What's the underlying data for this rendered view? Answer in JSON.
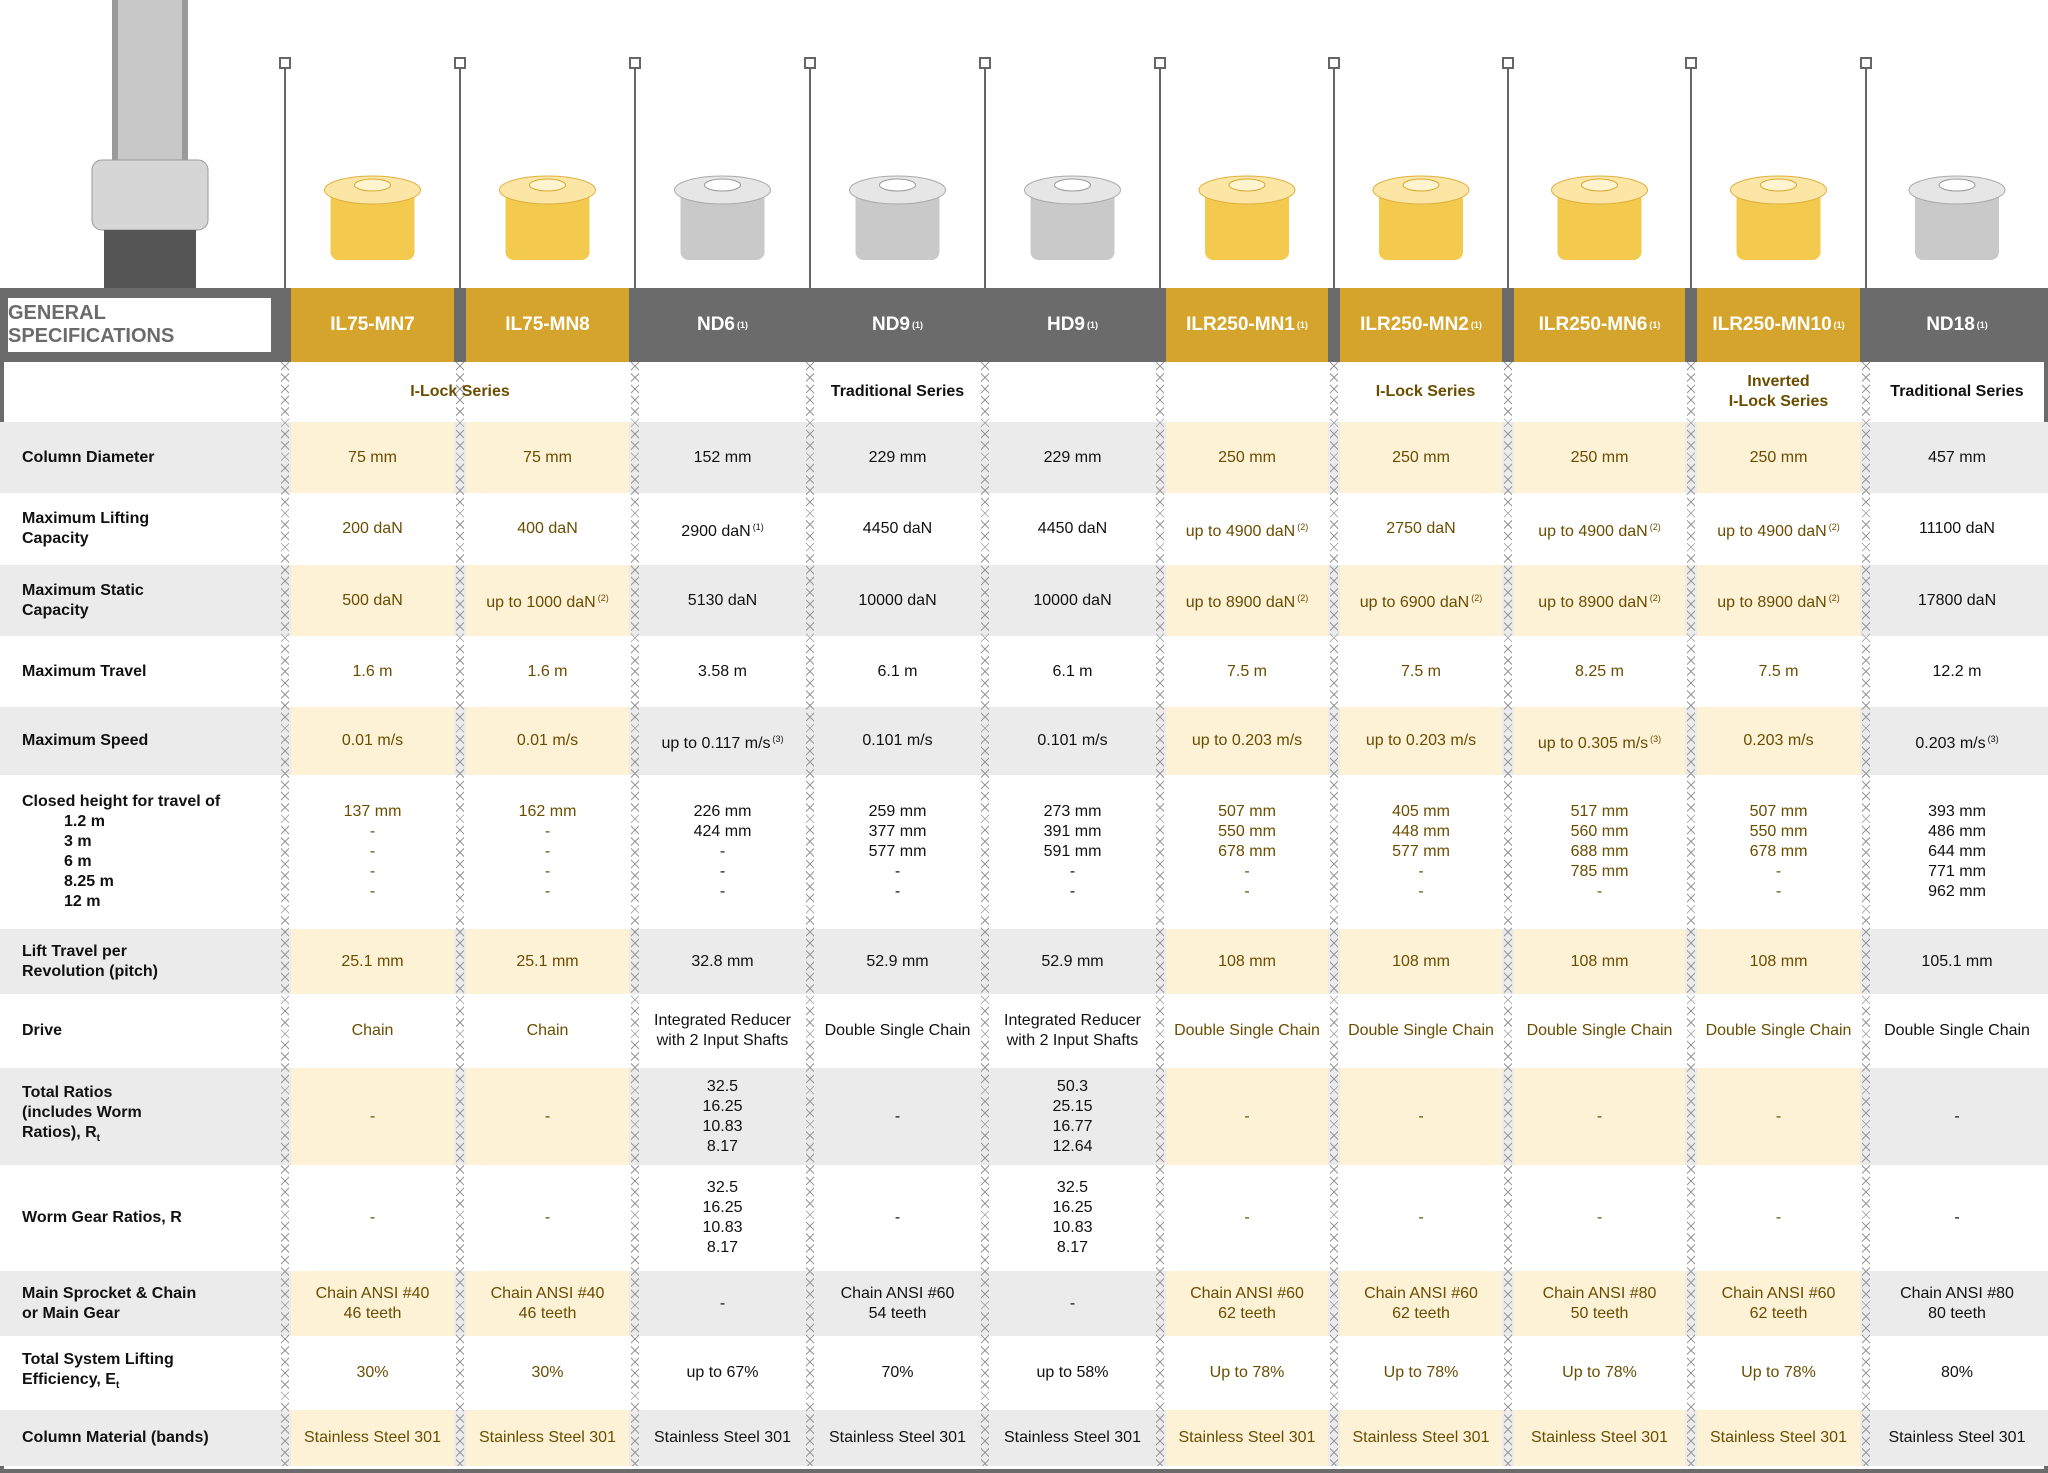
{
  "header": {
    "title": "GENERAL SPECIFICATIONS"
  },
  "columns": [
    {
      "name": "IL75-MN7",
      "color": "#d4a42c"
    },
    {
      "name": "IL75-MN8",
      "color": "#d4a42c"
    },
    {
      "name": "ND6",
      "note": "(1)",
      "color": "#6b6b6b"
    },
    {
      "name": "ND9",
      "note": "(1)",
      "color": "#6b6b6b"
    },
    {
      "name": "HD9",
      "note": "(1)",
      "color": "#6b6b6b"
    },
    {
      "name": "ILR250-MN1",
      "note": "(1)",
      "color": "#d4a42c"
    },
    {
      "name": "ILR250-MN2",
      "note": "(1)",
      "color": "#d4a42c"
    },
    {
      "name": "ILR250-MN6",
      "note": "(1)",
      "color": "#d4a42c"
    },
    {
      "name": "ILR250-MN10",
      "note": "(1)",
      "color": "#d4a42c"
    },
    {
      "name": "ND18",
      "note": "(1)",
      "color": "#6b6b6b"
    }
  ],
  "series": [
    [
      "I-Lock Series"
    ],
    [
      "Traditional Series"
    ],
    [
      "I-Lock Series"
    ],
    [
      "Inverted",
      "I-Lock Series"
    ],
    [
      "Traditional Series"
    ]
  ],
  "rows": [
    {
      "label": [
        "Column Diameter"
      ],
      "cells": [
        "75 mm",
        "75 mm",
        "152 mm",
        "229 mm",
        "229 mm",
        "250 mm",
        "250 mm",
        "250 mm",
        "250 mm",
        "457 mm"
      ]
    },
    {
      "label": [
        "Maximum Lifting",
        "Capacity"
      ],
      "cells": [
        "200 daN",
        "400 daN",
        [
          {
            "text": "2900 daN",
            "note": "(1)"
          }
        ],
        "4450 daN",
        "4450 daN",
        [
          {
            "text": "up to 4900 daN",
            "note": "(2)"
          }
        ],
        "2750 daN",
        [
          {
            "text": "up to 4900 daN",
            "note": "(2)"
          }
        ],
        [
          {
            "text": "up to 4900 daN",
            "note": "(2)"
          }
        ],
        "11100 daN"
      ]
    },
    {
      "label": [
        "Maximum Static",
        "Capacity"
      ],
      "cells": [
        "500 daN",
        [
          {
            "text": "up to 1000 daN",
            "note": "(2)"
          }
        ],
        "5130 daN",
        "10000 daN",
        "10000 daN",
        [
          {
            "text": "up to 8900 daN",
            "note": "(2)"
          }
        ],
        [
          {
            "text": "up to 6900 daN",
            "note": "(2)"
          }
        ],
        [
          {
            "text": "up to 8900 daN",
            "note": "(2)"
          }
        ],
        [
          {
            "text": "up to 8900 daN",
            "note": "(2)"
          }
        ],
        "17800 daN"
      ]
    },
    {
      "label": [
        "Maximum Travel"
      ],
      "cells": [
        "1.6 m",
        "1.6 m",
        "3.58 m",
        "6.1 m",
        "6.1 m",
        "7.5 m",
        "7.5 m",
        "8.25 m",
        "7.5 m",
        "12.2 m"
      ]
    },
    {
      "label": [
        "Maximum Speed"
      ],
      "cells": [
        "0.01 m/s",
        "0.01 m/s",
        [
          {
            "text": "up to 0.117 m/s",
            "note": "(3)"
          }
        ],
        "0.101 m/s",
        "0.101 m/s",
        "up to 0.203 m/s",
        "up to 0.203 m/s",
        [
          {
            "text": "up to 0.305 m/s",
            "note": "(3)"
          }
        ],
        "0.203 m/s",
        [
          {
            "text": "0.203 m/s",
            "note": "(3)"
          }
        ]
      ]
    },
    {
      "label": [
        "Closed height for travel of"
      ],
      "sublabels": [
        "1.2 m",
        "3 m",
        "6 m",
        "8.25 m",
        "12 m"
      ],
      "cells": [
        [
          "137 mm",
          "-",
          "-",
          "-",
          "-"
        ],
        [
          "162 mm",
          "-",
          "-",
          "-",
          "-"
        ],
        [
          "226 mm",
          "424 mm",
          "-",
          "-",
          "-"
        ],
        [
          "259 mm",
          "377 mm",
          "577 mm",
          "-",
          "-"
        ],
        [
          "273 mm",
          "391 mm",
          "591 mm",
          "-",
          "-"
        ],
        [
          "507 mm",
          "550 mm",
          "678 mm",
          "-",
          "-"
        ],
        [
          "405 mm",
          "448 mm",
          "577 mm",
          "-",
          "-"
        ],
        [
          "517 mm",
          "560 mm",
          "688 mm",
          "785 mm",
          "-"
        ],
        [
          "507 mm",
          "550 mm",
          "678 mm",
          "-",
          "-"
        ],
        [
          "393 mm",
          "486 mm",
          "644 mm",
          "771 mm",
          "962 mm"
        ]
      ]
    },
    {
      "label": [
        "Lift Travel per",
        "Revolution (pitch)"
      ],
      "cells": [
        "25.1 mm",
        "25.1 mm",
        "32.8 mm",
        "52.9 mm",
        "52.9 mm",
        "108 mm",
        "108 mm",
        "108 mm",
        "108 mm",
        "105.1 mm"
      ]
    },
    {
      "label": [
        "Drive"
      ],
      "cells": [
        "Chain",
        "Chain",
        [
          "Integrated Reducer",
          "with 2 Input Shafts"
        ],
        "Double Single Chain",
        [
          "Integrated Reducer",
          "with 2 Input Shafts"
        ],
        "Double Single Chain",
        "Double Single Chain",
        "Double Single Chain",
        "Double Single Chain",
        "Double Single Chain"
      ]
    },
    {
      "label": [
        "Total Ratios",
        "(includes Worm",
        {
          "text": "Ratios), R",
          "sub": "t"
        }
      ],
      "cells": [
        "-",
        "-",
        [
          "32.5",
          "16.25",
          "10.83",
          "8.17"
        ],
        "-",
        [
          "50.3",
          "25.15",
          "16.77",
          "12.64"
        ],
        "-",
        "-",
        "-",
        "-",
        "-"
      ]
    },
    {
      "label": [
        "Worm Gear Ratios, R"
      ],
      "cells": [
        "-",
        "-",
        [
          "32.5",
          "16.25",
          "10.83",
          "8.17"
        ],
        "-",
        [
          "32.5",
          "16.25",
          "10.83",
          "8.17"
        ],
        "-",
        "-",
        "-",
        "-",
        "-"
      ]
    },
    {
      "label": [
        "Main Sprocket & Chain",
        "or Main Gear"
      ],
      "cells": [
        [
          "Chain ANSI #40",
          "46 teeth"
        ],
        [
          "Chain ANSI #40",
          "46 teeth"
        ],
        "-",
        [
          "Chain ANSI #60",
          "54 teeth"
        ],
        "-",
        [
          "Chain ANSI #60",
          "62 teeth"
        ],
        [
          "Chain ANSI #60",
          "62 teeth"
        ],
        [
          "Chain ANSI #80",
          "50 teeth"
        ],
        [
          "Chain ANSI #60",
          "62 teeth"
        ],
        [
          "Chain ANSI #80",
          "80 teeth"
        ]
      ]
    },
    {
      "label": [
        "Total System Lifting",
        {
          "text": "Efficiency, E",
          "sub": "t"
        }
      ],
      "cells": [
        "30%",
        "30%",
        "up to 67%",
        "70%",
        "up to 58%",
        "Up to 78%",
        "Up to 78%",
        "Up to 78%",
        "Up to 78%",
        "80%"
      ]
    },
    {
      "label": [
        "Column Material (bands)"
      ],
      "cells": [
        "Stainless Steel 301",
        "Stainless Steel 301",
        "Stainless Steel 301",
        "Stainless Steel 301",
        "Stainless Steel 301",
        "Stainless Steel 301",
        "Stainless Steel 301",
        "Stainless Steel 301",
        "Stainless Steel 301",
        "Stainless Steel 301"
      ]
    }
  ]
}
